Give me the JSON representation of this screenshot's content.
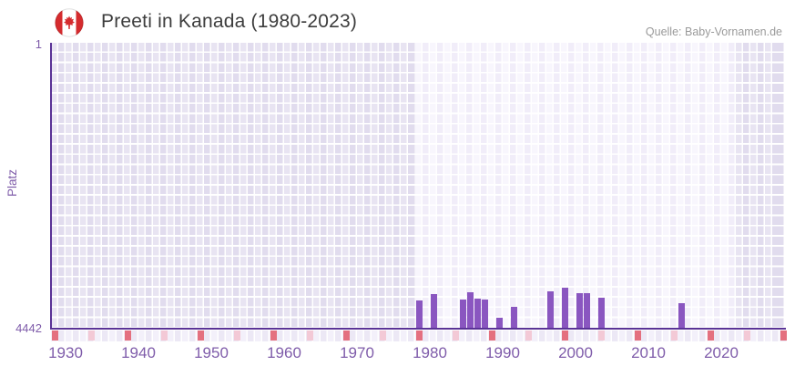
{
  "header": {
    "title": "Preeti in Kanada (1980-2023)",
    "source": "Quelle: Baby-Vornamen.de"
  },
  "y_axis": {
    "label": "Platz",
    "top_tick": "1",
    "bottom_tick": "4442"
  },
  "x_axis": {
    "tick_years": [
      1930,
      1940,
      1950,
      1960,
      1970,
      1980,
      1990,
      2000,
      2010,
      2020
    ],
    "decade_marks": [
      1930,
      1940,
      1950,
      1960,
      1970,
      1980,
      1990,
      2000,
      2010,
      2020,
      2030
    ],
    "half_decade_marks": [
      1935,
      1945,
      1955,
      1965,
      1975,
      1985,
      1995,
      2005,
      2015,
      2025
    ]
  },
  "chart_data": {
    "type": "bar",
    "title": "Preeti in Kanada (1980-2023)",
    "xlabel": "",
    "ylabel": "Platz",
    "y_axis_inverted": true,
    "ylim": [
      1,
      4442
    ],
    "x_range_years": [
      1929,
      2031
    ],
    "highlight_period": [
      1980,
      2023
    ],
    "grid": true,
    "legend": false,
    "series": [
      {
        "name": "Preeti",
        "points": [
          {
            "year": 1980,
            "rank": 4015
          },
          {
            "year": 1982,
            "rank": 3915
          },
          {
            "year": 1986,
            "rank": 4000
          },
          {
            "year": 1987,
            "rank": 3885
          },
          {
            "year": 1988,
            "rank": 3985
          },
          {
            "year": 1989,
            "rank": 4000
          },
          {
            "year": 1991,
            "rank": 4285
          },
          {
            "year": 1993,
            "rank": 4110
          },
          {
            "year": 1998,
            "rank": 3870
          },
          {
            "year": 2000,
            "rank": 3815
          },
          {
            "year": 2002,
            "rank": 3900
          },
          {
            "year": 2003,
            "rank": 3900
          },
          {
            "year": 2005,
            "rank": 3970
          },
          {
            "year": 2016,
            "rank": 4055
          }
        ]
      }
    ]
  },
  "colors": {
    "bar": "#8a56c0",
    "axis": "#5a3396",
    "tick_label": "#7f5caa",
    "decade_mark": "#e4707f",
    "half_decade_mark": "#f3c9d6",
    "title": "#3d3d3d",
    "source": "#9a9a9a"
  }
}
